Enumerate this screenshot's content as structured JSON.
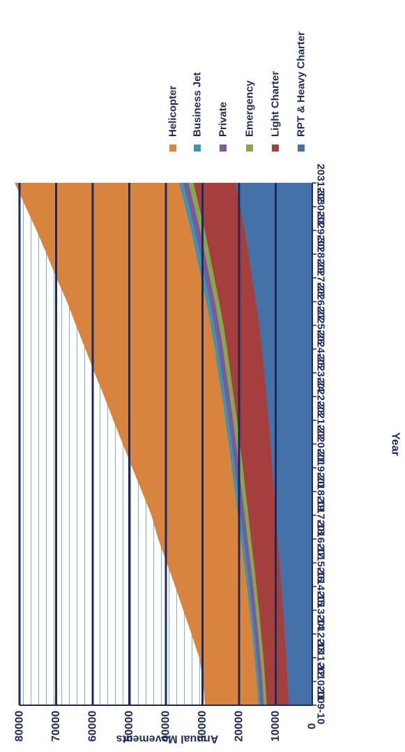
{
  "chart_data": {
    "type": "area",
    "stacked": true,
    "orientation": "rotated-90-clockwise",
    "xlabel": "Year",
    "ylabel": "Annual Movements",
    "categories": [
      "2009-10",
      "2010-11",
      "2011-12",
      "2012-13",
      "2013-14",
      "2014-15",
      "2015-16",
      "2016-17",
      "2017-18",
      "2018-19",
      "2019-20",
      "2020-21",
      "2021-22",
      "2022-23",
      "2023-24",
      "2024-25",
      "2025-26",
      "2026-27",
      "2027-28",
      "2028-29",
      "2029-30",
      "2030-31",
      "2031-32"
    ],
    "ylim": [
      0,
      80000
    ],
    "yticks": [
      0,
      10000,
      20000,
      30000,
      40000,
      50000,
      60000,
      70000,
      80000
    ],
    "grid": true,
    "legend_position": "right",
    "series": [
      {
        "name": "RPT & Heavy Charter",
        "color": "#4472a8",
        "values": [
          6500,
          6800,
          7200,
          7600,
          8000,
          8500,
          9000,
          9500,
          10000,
          10500,
          11000,
          11500,
          12000,
          12600,
          13200,
          13800,
          14500,
          15500,
          16500,
          17500,
          18500,
          19800,
          21000
        ]
      },
      {
        "name": "Light Charter",
        "color": "#a53f3e",
        "values": [
          6000,
          6100,
          6200,
          6400,
          6600,
          6800,
          7000,
          7300,
          7500,
          7800,
          8000,
          8300,
          8600,
          8900,
          9200,
          9500,
          9800,
          10000,
          10300,
          10600,
          10900,
          11200,
          11500
        ]
      },
      {
        "name": "Emergency",
        "color": "#89a64a",
        "values": [
          800,
          800,
          850,
          850,
          900,
          900,
          950,
          950,
          1000,
          1000,
          1050,
          1050,
          1100,
          1100,
          1150,
          1150,
          1200,
          1200,
          1250,
          1250,
          1300,
          1300,
          1350
        ]
      },
      {
        "name": "Private",
        "color": "#7a5a9a",
        "values": [
          900,
          900,
          950,
          950,
          1000,
          1000,
          1050,
          1050,
          1100,
          1100,
          1150,
          1150,
          1200,
          1200,
          1250,
          1250,
          1300,
          1300,
          1350,
          1350,
          1400,
          1400,
          1450
        ]
      },
      {
        "name": "Business Jet",
        "color": "#3a97b0",
        "values": [
          600,
          600,
          650,
          650,
          700,
          700,
          750,
          750,
          800,
          800,
          850,
          850,
          900,
          900,
          950,
          950,
          1000,
          1000,
          1050,
          1050,
          1100,
          1100,
          1150
        ]
      },
      {
        "name": "Helicopter",
        "color": "#d9843e",
        "values": [
          14500,
          14600,
          15000,
          16500,
          18000,
          19500,
          21000,
          22500,
          23500,
          25300,
          27100,
          28900,
          30500,
          32100,
          33700,
          35300,
          36700,
          38000,
          39400,
          40800,
          42100,
          43500,
          44800
        ]
      }
    ]
  }
}
